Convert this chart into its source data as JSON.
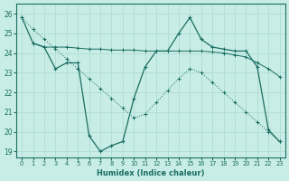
{
  "xlabel": "Humidex (Indice chaleur)",
  "bg_color": "#c8ece6",
  "line_color": "#1a6e62",
  "grid_color": "#b0ddd6",
  "xlim": [
    -0.5,
    23.5
  ],
  "ylim": [
    18.7,
    26.5
  ],
  "yticks": [
    19,
    20,
    21,
    22,
    23,
    24,
    25,
    26
  ],
  "xticks": [
    0,
    1,
    2,
    3,
    4,
    5,
    6,
    7,
    8,
    9,
    10,
    11,
    12,
    13,
    14,
    15,
    16,
    17,
    18,
    19,
    20,
    21,
    22,
    23
  ],
  "line_zigzag_x": [
    0,
    1,
    2,
    3,
    4,
    5,
    6,
    7,
    8,
    9,
    10,
    11,
    12,
    13,
    14,
    15,
    16,
    17,
    18,
    19,
    20,
    21,
    22,
    23
  ],
  "line_zigzag_y": [
    25.8,
    24.5,
    24.3,
    23.2,
    23.5,
    23.5,
    19.8,
    19.0,
    19.3,
    19.5,
    21.7,
    23.3,
    24.1,
    24.1,
    25.0,
    25.8,
    24.7,
    24.3,
    24.2,
    24.1,
    24.1,
    23.3,
    20.1,
    19.5
  ],
  "line_flat_x": [
    1,
    2,
    3,
    4,
    5,
    6,
    7,
    8,
    9,
    10,
    11,
    12,
    13,
    14,
    15,
    16,
    17,
    18,
    19,
    20,
    21,
    22,
    23
  ],
  "line_flat_y": [
    24.5,
    24.3,
    24.3,
    24.3,
    24.25,
    24.2,
    24.2,
    24.15,
    24.15,
    24.15,
    24.1,
    24.1,
    24.1,
    24.1,
    24.1,
    24.1,
    24.05,
    24.0,
    23.9,
    23.8,
    23.5,
    23.2,
    22.8
  ],
  "line_diag_x": [
    0,
    1,
    2,
    3,
    4,
    5,
    6,
    7,
    8,
    9,
    10,
    11,
    12,
    13,
    14,
    15,
    16,
    17,
    18,
    19,
    20,
    21,
    22,
    23
  ],
  "line_diag_y": [
    25.8,
    25.2,
    24.7,
    24.2,
    23.7,
    23.2,
    22.7,
    22.2,
    21.7,
    21.2,
    20.7,
    20.9,
    21.5,
    22.1,
    22.7,
    23.2,
    23.0,
    22.5,
    22.0,
    21.5,
    21.0,
    20.5,
    20.0,
    19.5
  ]
}
